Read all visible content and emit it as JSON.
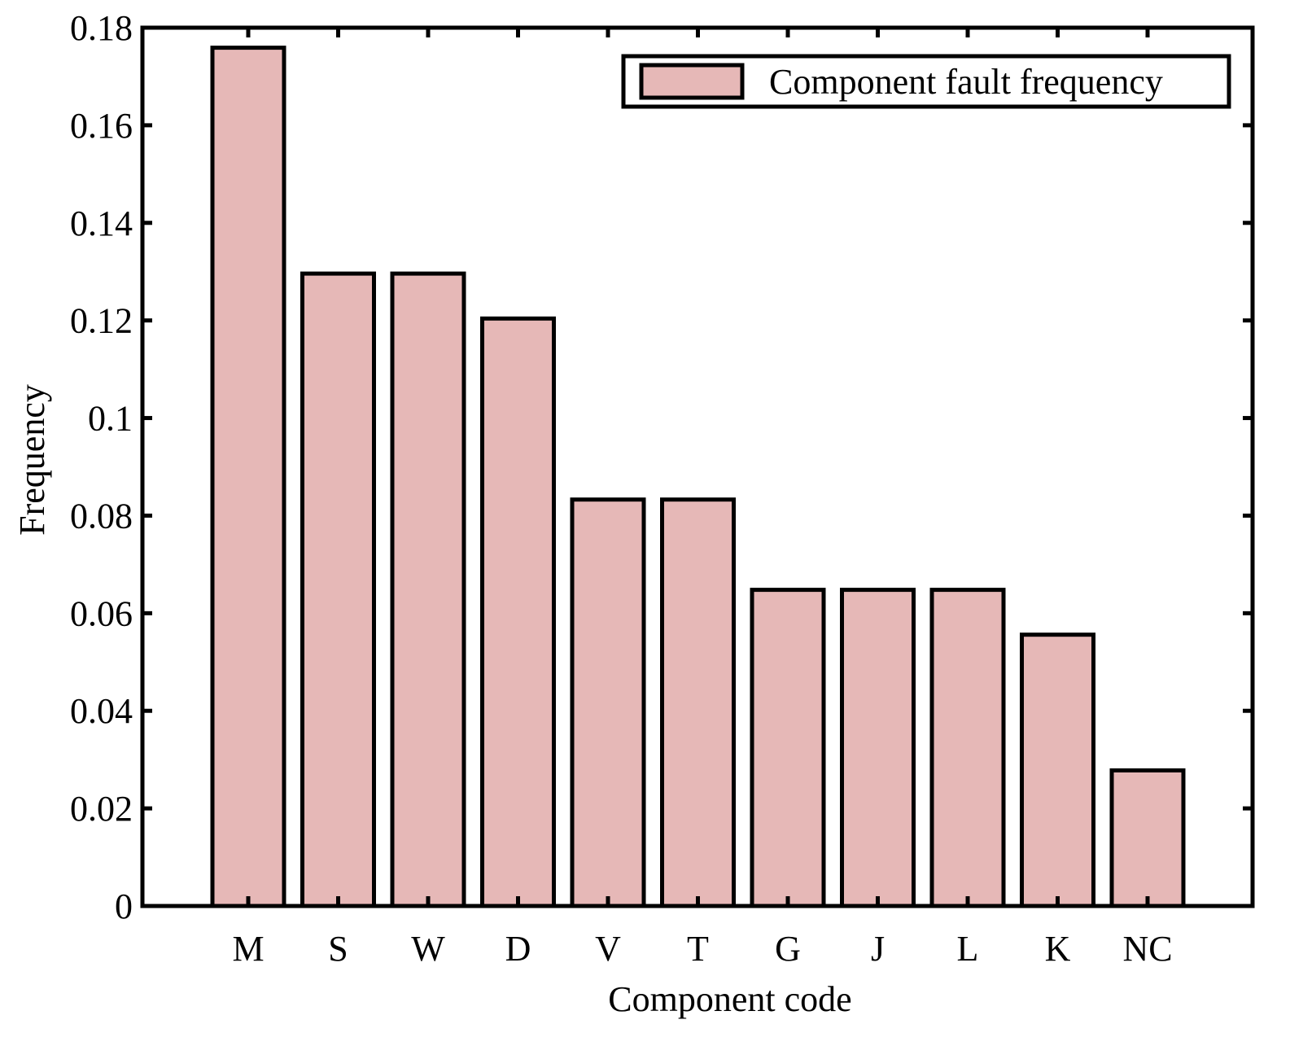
{
  "chart_data": {
    "type": "bar",
    "categories": [
      "M",
      "S",
      "W",
      "D",
      "V",
      "T",
      "G",
      "J",
      "L",
      "K",
      "NC"
    ],
    "series": [
      {
        "name": "Component fault frequency",
        "values": [
          0.1759,
          0.1296,
          0.1296,
          0.1204,
          0.0833,
          0.0833,
          0.0648,
          0.0648,
          0.0648,
          0.0556,
          0.0278
        ]
      }
    ],
    "xlabel": "Component code",
    "ylabel": "Frequency",
    "ylim": [
      0,
      0.18
    ],
    "yticks": [
      "0",
      "0.02",
      "0.04",
      "0.06",
      "0.08",
      "0.1",
      "0.12",
      "0.14",
      "0.16",
      "0.18"
    ],
    "grid": false,
    "legend_position": "top-right",
    "colors": {
      "bar_fill": "#e6b8b7",
      "bar_edge": "#000000",
      "axes": "#000000"
    }
  }
}
